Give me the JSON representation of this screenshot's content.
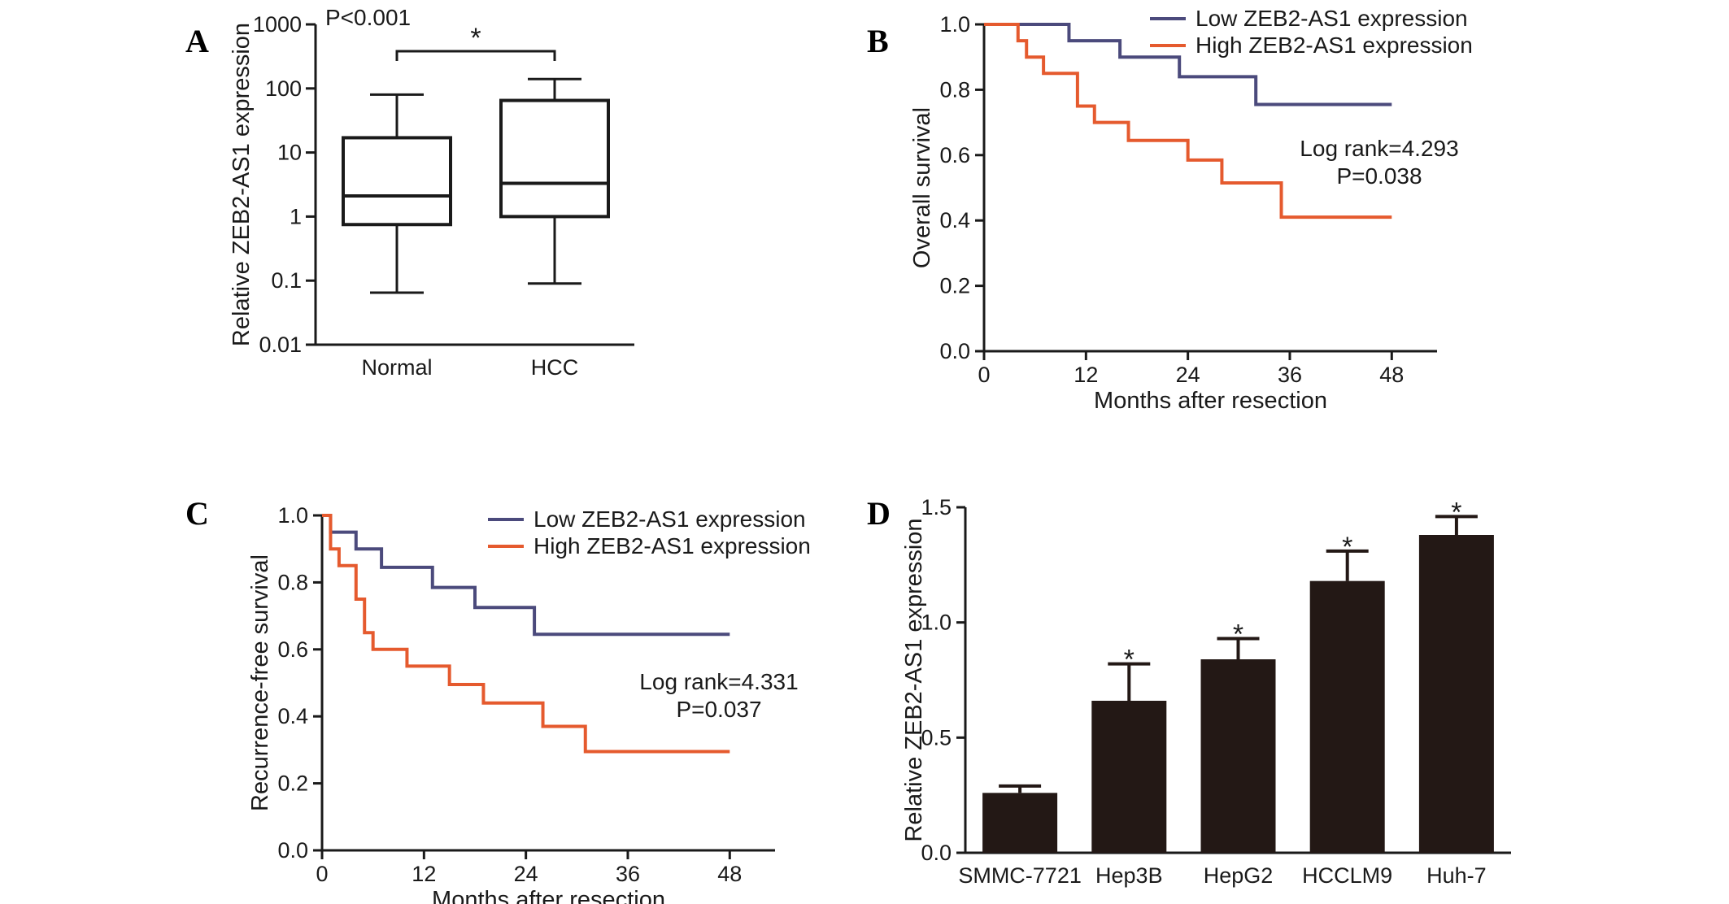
{
  "chart_data": [
    {
      "panel": "A",
      "type": "box",
      "ylabel": "Relative ZEB2-AS1 expression",
      "yscale": "log",
      "ylim": [
        0.01,
        1000
      ],
      "yticks": [
        "1000",
        "100",
        "10",
        "1",
        "0.1",
        "0.01"
      ],
      "categories": [
        "Normal",
        "HCC"
      ],
      "boxes": [
        {
          "min": 0.065,
          "q1": 0.75,
          "median": 2.1,
          "q3": 17,
          "max": 80
        },
        {
          "min": 0.09,
          "q1": 1.0,
          "median": 3.3,
          "q3": 65,
          "max": 140
        }
      ],
      "annotation": "P<0.001",
      "significance": "*"
    },
    {
      "panel": "B",
      "type": "line",
      "ylabel": "Overall survival",
      "xlabel": "Months after resection",
      "xlim": [
        0,
        48
      ],
      "ylim": [
        0,
        1.0
      ],
      "xticks": [
        "0",
        "12",
        "24",
        "36",
        "48"
      ],
      "yticks": [
        "1.0",
        "0.8",
        "0.6",
        "0.4",
        "0.2",
        "0.0"
      ],
      "series": [
        {
          "name": "Low ZEB2-AS1 expression",
          "color": "#4b4a7c",
          "x": [
            0,
            10,
            16,
            23,
            32,
            48
          ],
          "y": [
            1.0,
            0.95,
            0.9,
            0.84,
            0.755,
            0.755
          ]
        },
        {
          "name": "High ZEB2-AS1 expression",
          "color": "#e55a2e",
          "x": [
            0,
            4,
            5,
            7,
            11,
            13,
            17,
            24,
            28,
            35,
            48
          ],
          "y": [
            1.0,
            0.95,
            0.9,
            0.85,
            0.75,
            0.7,
            0.645,
            0.585,
            0.515,
            0.41,
            0.41
          ]
        }
      ],
      "annotation": [
        "Log rank=4.293",
        "P=0.038"
      ]
    },
    {
      "panel": "C",
      "type": "line",
      "ylabel": "Recurrence-free survival",
      "xlabel": "Months after resection",
      "xlim": [
        0,
        48
      ],
      "ylim": [
        0,
        1.0
      ],
      "xticks": [
        "0",
        "12",
        "24",
        "36",
        "48"
      ],
      "yticks": [
        "1.0",
        "0.8",
        "0.6",
        "0.4",
        "0.2",
        "0.0"
      ],
      "series": [
        {
          "name": "Low ZEB2-AS1 expression",
          "color": "#4b4a7c",
          "x": [
            0,
            1,
            4,
            7,
            13,
            18,
            25,
            48
          ],
          "y": [
            1.0,
            0.95,
            0.9,
            0.845,
            0.785,
            0.725,
            0.645,
            0.645
          ]
        },
        {
          "name": "High ZEB2-AS1 expression",
          "color": "#e55a2e",
          "x": [
            0,
            1,
            2,
            4,
            5,
            6,
            10,
            15,
            19,
            26,
            31,
            48
          ],
          "y": [
            1.0,
            0.9,
            0.85,
            0.75,
            0.65,
            0.6,
            0.55,
            0.495,
            0.44,
            0.37,
            0.295,
            0.295
          ]
        }
      ],
      "annotation": [
        "Log rank=4.331",
        "P=0.037"
      ]
    },
    {
      "panel": "D",
      "type": "bar",
      "ylabel": "Relative ZEB2-AS1 expression",
      "ylim": [
        0,
        1.5
      ],
      "yticks": [
        "1.5",
        "1.0",
        "0.5",
        "0.0"
      ],
      "categories": [
        "SMMC-7721",
        "Hep3B",
        "HepG2",
        "HCCLM9",
        "Huh-7"
      ],
      "values": [
        0.26,
        0.66,
        0.84,
        1.18,
        1.38
      ],
      "errors": [
        0.03,
        0.16,
        0.09,
        0.13,
        0.08
      ],
      "significance": [
        "",
        "*",
        "*",
        "*",
        "*"
      ]
    }
  ]
}
